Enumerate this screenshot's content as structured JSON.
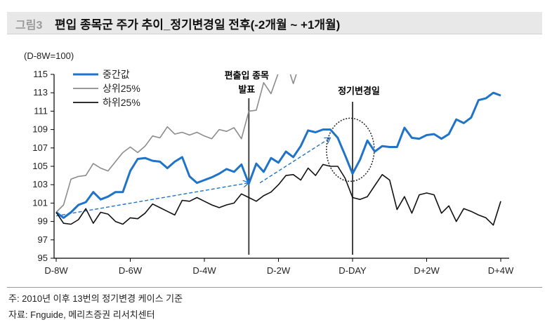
{
  "header": {
    "figure_label": "그림3",
    "title": "편입 종목군 주가 추이_정기변경일 전후(-2개월 ~ +1개월)"
  },
  "chart_data": {
    "type": "line",
    "title": "편입 종목군 주가 추이_정기변경일 전후(-2개월 ~ +1개월)",
    "ylabel": "(D-8W=100)",
    "xlabel": "",
    "ylim": [
      95,
      115
    ],
    "yticks": [
      95,
      97,
      99,
      101,
      103,
      105,
      107,
      109,
      111,
      113,
      115
    ],
    "xticks": [
      "D-8W",
      "D-6W",
      "D-4W",
      "D-2W",
      "D-DAY",
      "D+2W",
      "D+4W"
    ],
    "x_range_trading_days": [
      -40,
      20
    ],
    "grid": false,
    "legend": "top-left",
    "series": [
      {
        "name": "중간값",
        "color": "#1f73c8",
        "values": [
          100,
          99.4,
          100,
          100.8,
          101.1,
          102.2,
          101.4,
          101.7,
          102.2,
          102.2,
          104.5,
          105.8,
          105.9,
          105.6,
          105.5,
          104.8,
          105.5,
          106,
          103.9,
          103.2,
          103.5,
          103.8,
          104.2,
          104.7,
          104.4,
          105.2,
          103.1,
          105.3,
          104.4,
          105.9,
          105.4,
          106.6,
          106,
          107.2,
          108.9,
          108.7,
          109,
          109,
          108.1,
          106.2,
          104.2,
          105.7,
          107.8,
          106.6,
          107.2,
          107.1,
          107.1,
          109.2,
          108.1,
          108,
          108.4,
          108.5,
          108,
          108.5,
          110.1,
          109.7,
          110.3,
          112.2,
          112.4,
          113,
          112.7
        ]
      },
      {
        "name": "상위25%",
        "color": "#8c8c8c",
        "values": [
          100,
          100.8,
          103.6,
          103.9,
          104,
          105.3,
          104.8,
          104.5,
          105.5,
          106.5,
          107.1,
          106.5,
          107.2,
          108.3,
          108.1,
          109.3,
          108.5,
          108.7,
          108.4,
          108.7,
          108.3,
          108,
          109,
          108.8,
          109.2,
          108,
          111,
          111.1,
          114.1,
          112.9,
          115.2,
          116.5,
          114,
          116.5,
          null,
          null,
          null,
          null,
          null,
          null,
          null,
          null,
          null,
          null,
          null,
          null,
          null,
          null,
          null,
          null,
          null,
          null,
          null,
          null,
          null,
          null,
          null,
          null,
          null,
          null,
          null
        ]
      },
      {
        "name": "하위25%",
        "color": "#111111",
        "values": [
          100,
          98.8,
          98.7,
          99.2,
          100.4,
          98.8,
          100,
          99.8,
          99,
          98.7,
          99.4,
          99.3,
          99.9,
          100.9,
          100.5,
          100.1,
          99.7,
          101.3,
          101.2,
          101.6,
          101.2,
          100.8,
          100.5,
          100.8,
          101,
          102,
          101.6,
          101.2,
          101.8,
          102.2,
          103,
          104,
          104.1,
          103.5,
          104.8,
          104,
          105.2,
          105,
          105,
          103.7,
          101.6,
          101.4,
          101.7,
          102.9,
          104.1,
          103.5,
          100.3,
          101.7,
          99.9,
          101.9,
          102.1,
          101.9,
          99.9,
          100.7,
          99,
          100.4,
          100.1,
          99.7,
          99.4,
          98.6,
          101.2
        ]
      }
    ],
    "annotations": [
      {
        "text_lines": [
          "편출입 종목",
          "발표"
        ],
        "x_day": -14,
        "type": "vertical-line"
      },
      {
        "text_lines": [
          "정기변경일"
        ],
        "x_day": 0,
        "type": "vertical-line"
      },
      {
        "type": "dashed-arrow",
        "from": {
          "day": -40,
          "value": 99.6
        },
        "to": {
          "day": -14,
          "value": 103.2
        }
      },
      {
        "type": "dashed-arrow",
        "from": {
          "day": -12.5,
          "value": 103.2
        },
        "to": {
          "day": -3,
          "value": 108.1
        }
      },
      {
        "type": "dotted-ellipse",
        "center": {
          "day": -0.3,
          "value": 106.8
        }
      }
    ]
  },
  "footer": {
    "note": "주: 2010년 이후 13번의 정기변경 케이스 기준",
    "source": "자료: Fnguide, 메리츠증권 리서치센터"
  }
}
